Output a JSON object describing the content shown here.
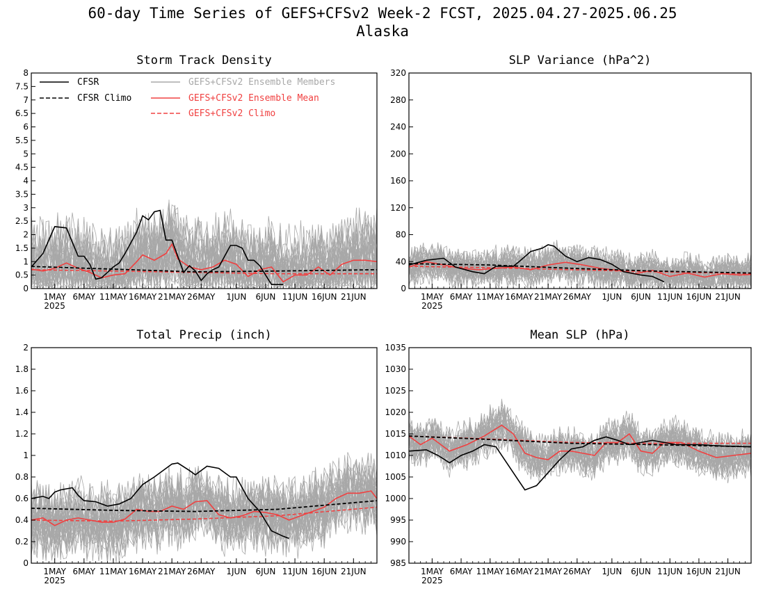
{
  "header": {
    "title_line1": "60-day Time Series of GEFS+CFSv2 Week-2 FCST, 2025.04.27-2025.06.25",
    "title_line2": "Alaska"
  },
  "colors": {
    "cfsr": "#000000",
    "members": "#a8a8a8",
    "ens_mean": "#f04040",
    "ens_climo": "#f04040"
  },
  "legend": {
    "cfsr": "CFSR",
    "cfsr_climo": "CFSR Climo",
    "members": "GEFS+CFSv2 Ensemble Members",
    "ens_mean": "GEFS+CFSv2 Ensemble Mean",
    "ens_climo": "GEFS+CFSv2 Climo"
  },
  "chart_data": [
    {
      "type": "line",
      "title": "Storm Track Density",
      "x_start": "2025-04-27",
      "x_end": "2025-06-25",
      "x_ticks": [
        "1MAY",
        "6MAY",
        "11MAY",
        "16MAY",
        "21MAY",
        "26MAY",
        "1JUN",
        "6JUN",
        "11JUN",
        "16JUN",
        "21JUN"
      ],
      "x_tick_dates": [
        "2025-05-01",
        "2025-05-06",
        "2025-05-11",
        "2025-05-16",
        "2025-05-21",
        "2025-05-26",
        "2025-06-01",
        "2025-06-06",
        "2025-06-11",
        "2025-06-16",
        "2025-06-21"
      ],
      "x_year_label": "2025",
      "ylim": [
        0,
        8
      ],
      "y_ticks": [
        0,
        0.5,
        1,
        1.5,
        2,
        2.5,
        3,
        3.5,
        4,
        4.5,
        5,
        5.5,
        6,
        6.5,
        7,
        7.5,
        8
      ],
      "series": [
        {
          "role": "cfsr",
          "dates": [
            "2025-04-27",
            "2025-04-29",
            "2025-05-01",
            "2025-05-03",
            "2025-05-05",
            "2025-05-06",
            "2025-05-07",
            "2025-05-08",
            "2025-05-09",
            "2025-05-10",
            "2025-05-11",
            "2025-05-12",
            "2025-05-13",
            "2025-05-14",
            "2025-05-15",
            "2025-05-16",
            "2025-05-17",
            "2025-05-18",
            "2025-05-19",
            "2025-05-20",
            "2025-05-21",
            "2025-05-22",
            "2025-05-23",
            "2025-05-24",
            "2025-05-25",
            "2025-05-26",
            "2025-05-27",
            "2025-05-28",
            "2025-05-29",
            "2025-05-30",
            "2025-05-31",
            "2025-06-01",
            "2025-06-02",
            "2025-06-03",
            "2025-06-04",
            "2025-06-05",
            "2025-06-06",
            "2025-06-07",
            "2025-06-08",
            "2025-06-09"
          ],
          "values": [
            0.8,
            1.3,
            2.3,
            2.25,
            1.2,
            1.2,
            0.9,
            0.35,
            0.4,
            0.6,
            0.8,
            0.95,
            1.3,
            1.7,
            2.1,
            2.7,
            2.55,
            2.85,
            2.9,
            1.8,
            1.8,
            1.2,
            0.6,
            0.85,
            0.65,
            0.3,
            0.55,
            0.7,
            0.8,
            1.2,
            1.6,
            1.6,
            1.5,
            1.05,
            1.05,
            0.85,
            0.5,
            0.15,
            0.15,
            0.15
          ]
        },
        {
          "role": "cfsr_climo",
          "dates": [
            "2025-04-27",
            "2025-05-11",
            "2025-05-25",
            "2025-06-08",
            "2025-06-25"
          ],
          "values": [
            0.82,
            0.72,
            0.62,
            0.65,
            0.7
          ]
        },
        {
          "role": "ens_mean",
          "dates": [
            "2025-04-27",
            "2025-04-29",
            "2025-05-01",
            "2025-05-03",
            "2025-05-05",
            "2025-05-07",
            "2025-05-09",
            "2025-05-11",
            "2025-05-13",
            "2025-05-15",
            "2025-05-16",
            "2025-05-18",
            "2025-05-20",
            "2025-05-21",
            "2025-05-22",
            "2025-05-24",
            "2025-05-26",
            "2025-05-28",
            "2025-05-30",
            "2025-06-01",
            "2025-06-03",
            "2025-06-05",
            "2025-06-07",
            "2025-06-09",
            "2025-06-11",
            "2025-06-13",
            "2025-06-15",
            "2025-06-17",
            "2025-06-19",
            "2025-06-21",
            "2025-06-23",
            "2025-06-25"
          ],
          "values": [
            0.72,
            0.65,
            0.75,
            0.95,
            0.75,
            0.6,
            0.4,
            0.5,
            0.55,
            1.0,
            1.25,
            1.05,
            1.3,
            1.65,
            1.1,
            0.8,
            0.7,
            0.8,
            1.05,
            0.9,
            0.45,
            0.7,
            0.8,
            0.25,
            0.5,
            0.5,
            0.8,
            0.5,
            0.9,
            1.05,
            1.05,
            1.0
          ]
        },
        {
          "role": "ens_climo",
          "dates": [
            "2025-04-27",
            "2025-05-11",
            "2025-05-25",
            "2025-06-08",
            "2025-06-25"
          ],
          "values": [
            0.7,
            0.65,
            0.6,
            0.55,
            0.55
          ]
        }
      ],
      "members": {
        "count": 32,
        "base_level": 1.25,
        "spread": 1.8,
        "max_ref": 5.2
      }
    },
    {
      "type": "line",
      "title": "SLP Variance (hPa^2)",
      "x_start": "2025-04-27",
      "x_end": "2025-06-25",
      "x_ticks": [
        "1MAY",
        "6MAY",
        "11MAY",
        "16MAY",
        "21MAY",
        "26MAY",
        "1JUN",
        "6JUN",
        "11JUN",
        "16JUN",
        "21JUN"
      ],
      "x_tick_dates": [
        "2025-05-01",
        "2025-05-06",
        "2025-05-11",
        "2025-05-16",
        "2025-05-21",
        "2025-05-26",
        "2025-06-01",
        "2025-06-06",
        "2025-06-11",
        "2025-06-16",
        "2025-06-21"
      ],
      "x_year_label": "2025",
      "ylim": [
        0,
        320
      ],
      "y_ticks": [
        0,
        40,
        80,
        120,
        160,
        200,
        240,
        280,
        320
      ],
      "series": [
        {
          "role": "cfsr",
          "dates": [
            "2025-04-27",
            "2025-04-30",
            "2025-05-03",
            "2025-05-05",
            "2025-05-08",
            "2025-05-10",
            "2025-05-12",
            "2025-05-15",
            "2025-05-16",
            "2025-05-18",
            "2025-05-20",
            "2025-05-21",
            "2025-05-22",
            "2025-05-24",
            "2025-05-26",
            "2025-05-28",
            "2025-05-30",
            "2025-06-01",
            "2025-06-03",
            "2025-06-06",
            "2025-06-08",
            "2025-06-10"
          ],
          "values": [
            35,
            42,
            45,
            32,
            25,
            22,
            33,
            33,
            40,
            55,
            60,
            65,
            63,
            48,
            40,
            46,
            43,
            36,
            25,
            20,
            18,
            10
          ]
        },
        {
          "role": "cfsr_climo",
          "dates": [
            "2025-04-27",
            "2025-05-11",
            "2025-05-25",
            "2025-06-08",
            "2025-06-25"
          ],
          "values": [
            37,
            35,
            30,
            26,
            23
          ]
        },
        {
          "role": "ens_mean",
          "dates": [
            "2025-04-27",
            "2025-04-30",
            "2025-05-03",
            "2025-05-06",
            "2025-05-09",
            "2025-05-12",
            "2025-05-15",
            "2025-05-18",
            "2025-05-21",
            "2025-05-24",
            "2025-05-27",
            "2025-05-30",
            "2025-06-02",
            "2025-06-05",
            "2025-06-08",
            "2025-06-11",
            "2025-06-14",
            "2025-06-17",
            "2025-06-20",
            "2025-06-23",
            "2025-06-25"
          ],
          "values": [
            32,
            40,
            35,
            30,
            28,
            30,
            32,
            28,
            35,
            39,
            35,
            30,
            27,
            22,
            27,
            18,
            23,
            17,
            22,
            20,
            21
          ]
        },
        {
          "role": "ens_climo",
          "dates": [
            "2025-04-27",
            "2025-05-11",
            "2025-05-25",
            "2025-06-08",
            "2025-06-25"
          ],
          "values": [
            33,
            31,
            28,
            25,
            22
          ]
        }
      ],
      "members": {
        "count": 32,
        "base_level": 30,
        "spread": 30,
        "max_ref": 135
      }
    },
    {
      "type": "line",
      "title": "Total Precip (inch)",
      "x_start": "2025-04-27",
      "x_end": "2025-06-25",
      "x_ticks": [
        "1MAY",
        "6MAY",
        "11MAY",
        "16MAY",
        "21MAY",
        "26MAY",
        "1JUN",
        "6JUN",
        "11JUN",
        "16JUN",
        "21JUN"
      ],
      "x_tick_dates": [
        "2025-05-01",
        "2025-05-06",
        "2025-05-11",
        "2025-05-16",
        "2025-05-21",
        "2025-05-26",
        "2025-06-01",
        "2025-06-06",
        "2025-06-11",
        "2025-06-16",
        "2025-06-21"
      ],
      "x_year_label": "2025",
      "ylim": [
        0,
        2
      ],
      "y_ticks": [
        0,
        0.2,
        0.4,
        0.6,
        0.8,
        1,
        1.2,
        1.4,
        1.6,
        1.8,
        2
      ],
      "series": [
        {
          "role": "cfsr",
          "dates": [
            "2025-04-27",
            "2025-04-29",
            "2025-04-30",
            "2025-05-01",
            "2025-05-02",
            "2025-05-04",
            "2025-05-05",
            "2025-05-06",
            "2025-05-08",
            "2025-05-10",
            "2025-05-12",
            "2025-05-14",
            "2025-05-16",
            "2025-05-18",
            "2025-05-20",
            "2025-05-21",
            "2025-05-22",
            "2025-05-24",
            "2025-05-25",
            "2025-05-27",
            "2025-05-29",
            "2025-05-31",
            "2025-06-01",
            "2025-06-03",
            "2025-06-05",
            "2025-06-07",
            "2025-06-09",
            "2025-06-10"
          ],
          "values": [
            0.6,
            0.62,
            0.6,
            0.66,
            0.68,
            0.7,
            0.63,
            0.58,
            0.57,
            0.53,
            0.55,
            0.6,
            0.73,
            0.8,
            0.88,
            0.92,
            0.93,
            0.86,
            0.82,
            0.9,
            0.88,
            0.8,
            0.8,
            0.6,
            0.48,
            0.3,
            0.25,
            0.23
          ]
        },
        {
          "role": "cfsr_climo",
          "dates": [
            "2025-04-27",
            "2025-05-11",
            "2025-05-25",
            "2025-06-08",
            "2025-06-25"
          ],
          "values": [
            0.51,
            0.49,
            0.48,
            0.5,
            0.58
          ]
        },
        {
          "role": "ens_mean",
          "dates": [
            "2025-04-27",
            "2025-04-29",
            "2025-05-01",
            "2025-05-03",
            "2025-05-05",
            "2025-05-07",
            "2025-05-09",
            "2025-05-11",
            "2025-05-13",
            "2025-05-15",
            "2025-05-17",
            "2025-05-19",
            "2025-05-21",
            "2025-05-23",
            "2025-05-25",
            "2025-05-27",
            "2025-05-29",
            "2025-05-31",
            "2025-06-02",
            "2025-06-04",
            "2025-06-06",
            "2025-06-08",
            "2025-06-10",
            "2025-06-12",
            "2025-06-14",
            "2025-06-16",
            "2025-06-18",
            "2025-06-20",
            "2025-06-22",
            "2025-06-24",
            "2025-06-25"
          ],
          "values": [
            0.4,
            0.42,
            0.35,
            0.4,
            0.42,
            0.4,
            0.38,
            0.38,
            0.41,
            0.5,
            0.48,
            0.48,
            0.53,
            0.5,
            0.57,
            0.58,
            0.45,
            0.42,
            0.44,
            0.48,
            0.47,
            0.45,
            0.4,
            0.44,
            0.48,
            0.52,
            0.6,
            0.65,
            0.65,
            0.67,
            0.6
          ]
        },
        {
          "role": "ens_climo",
          "dates": [
            "2025-04-27",
            "2025-05-11",
            "2025-05-25",
            "2025-06-08",
            "2025-06-25"
          ],
          "values": [
            0.4,
            0.39,
            0.41,
            0.44,
            0.52
          ]
        }
      ],
      "members": {
        "count": 32,
        "base_level": 0.48,
        "spread": 0.35,
        "max_ref": 1.33
      }
    },
    {
      "type": "line",
      "title": "Mean SLP (hPa)",
      "x_start": "2025-04-27",
      "x_end": "2025-06-25",
      "x_ticks": [
        "1MAY",
        "6MAY",
        "11MAY",
        "16MAY",
        "21MAY",
        "26MAY",
        "1JUN",
        "6JUN",
        "11JUN",
        "16JUN",
        "21JUN"
      ],
      "x_tick_dates": [
        "2025-05-01",
        "2025-05-06",
        "2025-05-11",
        "2025-05-16",
        "2025-05-21",
        "2025-05-26",
        "2025-06-01",
        "2025-06-06",
        "2025-06-11",
        "2025-06-16",
        "2025-06-21"
      ],
      "x_year_label": "2025",
      "ylim": [
        985,
        1035
      ],
      "y_ticks": [
        985,
        990,
        995,
        1000,
        1005,
        1010,
        1015,
        1020,
        1025,
        1030,
        1035
      ],
      "series": [
        {
          "role": "cfsr",
          "dates": [
            "2025-04-27",
            "2025-04-30",
            "2025-05-02",
            "2025-05-04",
            "2025-05-06",
            "2025-05-08",
            "2025-05-10",
            "2025-05-12",
            "2025-05-14",
            "2025-05-16",
            "2025-05-17",
            "2025-05-19",
            "2025-05-21",
            "2025-05-23",
            "2025-05-25",
            "2025-05-27",
            "2025-05-29",
            "2025-05-31",
            "2025-06-02",
            "2025-06-04",
            "2025-06-06",
            "2025-06-08",
            "2025-06-10",
            "2025-06-12",
            "2025-06-16",
            "2025-06-20",
            "2025-06-25"
          ],
          "values": [
            1011,
            1011.3,
            1010,
            1008.3,
            1010,
            1011,
            1012.5,
            1012,
            1008,
            1004,
            1002,
            1003,
            1006,
            1009,
            1011.5,
            1012,
            1013.5,
            1014.3,
            1013.5,
            1012.5,
            1013,
            1013.5,
            1013,
            1012.5,
            1012.5,
            1012.2,
            1012
          ]
        },
        {
          "role": "cfsr_climo",
          "dates": [
            "2025-04-27",
            "2025-05-11",
            "2025-05-25",
            "2025-06-08",
            "2025-06-25"
          ],
          "values": [
            1014.5,
            1013.7,
            1012.8,
            1012.5,
            1012
          ]
        },
        {
          "role": "ens_mean",
          "dates": [
            "2025-04-27",
            "2025-04-29",
            "2025-05-01",
            "2025-05-04",
            "2025-05-07",
            "2025-05-10",
            "2025-05-13",
            "2025-05-15",
            "2025-05-17",
            "2025-05-19",
            "2025-05-21",
            "2025-05-23",
            "2025-05-25",
            "2025-05-27",
            "2025-05-29",
            "2025-05-31",
            "2025-06-02",
            "2025-06-04",
            "2025-06-06",
            "2025-06-08",
            "2025-06-10",
            "2025-06-13",
            "2025-06-16",
            "2025-06-19",
            "2025-06-22",
            "2025-06-25"
          ],
          "values": [
            1014.5,
            1012.5,
            1014,
            1011,
            1012.5,
            1014.5,
            1017,
            1015,
            1010.5,
            1009.5,
            1009,
            1011,
            1011,
            1010.5,
            1010,
            1013,
            1013,
            1015,
            1011,
            1010.5,
            1013,
            1013,
            1011,
            1009.5,
            1010,
            1010.5
          ]
        },
        {
          "role": "ens_climo",
          "dates": [
            "2025-04-27",
            "2025-05-11",
            "2025-05-25",
            "2025-06-08",
            "2025-06-25"
          ],
          "values": [
            1014.5,
            1013.8,
            1013,
            1012.8,
            1012.8
          ]
        }
      ],
      "members": {
        "count": 32,
        "base_level": 1013,
        "spread": 5.5,
        "max_ref": 1025
      }
    }
  ]
}
